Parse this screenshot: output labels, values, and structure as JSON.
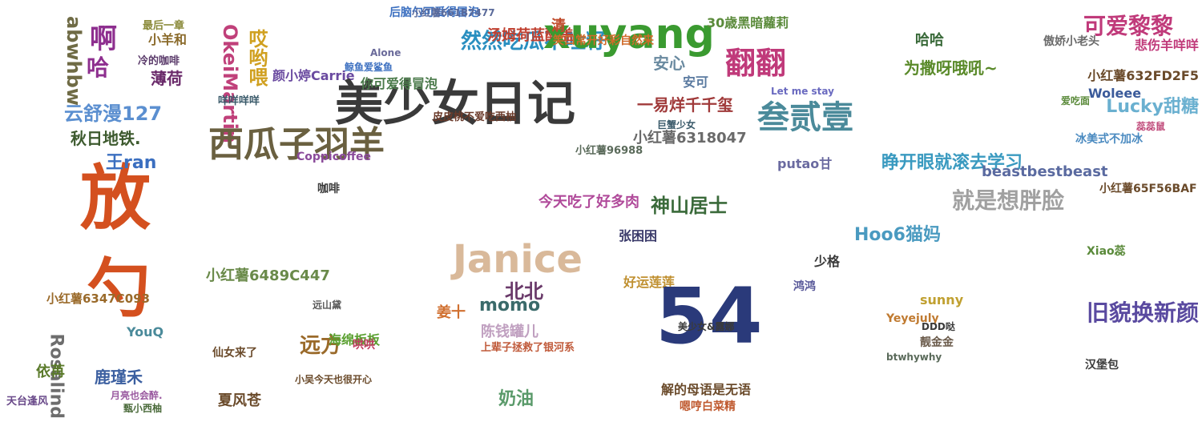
{
  "words": [
    {
      "text": "放",
      "color": "#d4501f"
    },
    {
      "text": "勺",
      "color": "#d4501f"
    },
    {
      "text": "abwhbw",
      "color": "#6f6b45"
    },
    {
      "text": "啊",
      "color": "#8e2f8f"
    },
    {
      "text": "哈",
      "color": "#8e2f8f"
    },
    {
      "text": "云舒漫127",
      "color": "#5b8fd0"
    },
    {
      "text": "秋日地铁.",
      "color": "#3d5a2e"
    },
    {
      "text": "王ran",
      "color": "#3b6fc0"
    },
    {
      "text": "Rosalind",
      "color": "#6d6d6d"
    },
    {
      "text": "鹿瑾禾",
      "color": "#3b5fa0"
    },
    {
      "text": "YouQ",
      "color": "#4a8a9a"
    },
    {
      "text": "小红薯6347C093",
      "color": "#9a6a2a"
    },
    {
      "text": "依苒",
      "color": "#5a7a2a"
    },
    {
      "text": "天台逢风",
      "color": "#6a4a8a"
    },
    {
      "text": "小羊和",
      "color": "#8a6a2a"
    },
    {
      "text": "最后一章",
      "color": "#8a8a3a"
    },
    {
      "text": "冷的咖啡",
      "color": "#5a3a6a"
    },
    {
      "text": "薄荷",
      "color": "#6a2a6a"
    },
    {
      "text": "月亮也会醉.",
      "color": "#9a5aa0"
    },
    {
      "text": "甄小西柚",
      "color": "#4a6a3a"
    },
    {
      "text": "OkeiMartin",
      "color": "#c0407a"
    },
    {
      "text": "哎哟喂",
      "color": "#d0a020"
    },
    {
      "text": "西瓜子羽羊",
      "color": "#6a6040"
    },
    {
      "text": "颜小婷Carrie",
      "color": "#6a4aa0"
    },
    {
      "text": "咩咩咩咩",
      "color": "#3a5a6a"
    },
    {
      "text": "小红薯6489C447",
      "color": "#6a8a4a"
    },
    {
      "text": "夏风苍",
      "color": "#6a4a2a"
    },
    {
      "text": "仙女来了",
      "color": "#6a4a2a"
    },
    {
      "text": "美少女日记",
      "color": "#3a3a3a"
    },
    {
      "text": "鲸鱼爱鲨鱼",
      "color": "#3b6fc0"
    },
    {
      "text": "你可爱得冒泡",
      "color": "#4a7a4a"
    },
    {
      "text": "Coppicoffee",
      "color": "#8a4a9a"
    },
    {
      "text": "咖啡",
      "color": "#3a3a3a"
    },
    {
      "text": "远方",
      "color": "#9a6a2a"
    },
    {
      "text": "海绵板板",
      "color": "#5aa030"
    },
    {
      "text": "哄哄",
      "color": "#c03a60"
    },
    {
      "text": "远山黛",
      "color": "#5a5a5a"
    },
    {
      "text": "小吴今天也很开心",
      "color": "#6a4a2a"
    },
    {
      "text": "后脑勺可爱得冒泡",
      "color": "#3b6fc0"
    },
    {
      "text": "Alone",
      "color": "#6a6a9a"
    },
    {
      "text": "小红薯661B7477",
      "color": "#5a6a9a"
    },
    {
      "text": "然然吃瓜不吐籽",
      "color": "#2a8fc0"
    },
    {
      "text": "汤姆荷蓝酷盖",
      "color": "#c04030"
    },
    {
      "text": "皮皮桃不爱吃西柚",
      "color": "#6a3a2a"
    },
    {
      "text": "Janice",
      "color": "#d9b99a"
    },
    {
      "text": "北北",
      "color": "#6a3a6a"
    },
    {
      "text": "陈钱罐儿",
      "color": "#c0a0c0"
    },
    {
      "text": "奶油",
      "color": "#5a9a6a"
    },
    {
      "text": "上辈子拯救了银河系",
      "color": "#c05a3a"
    },
    {
      "text": "姜十",
      "color": "#d07030"
    },
    {
      "text": "xuyang",
      "color": "#3a9a30"
    },
    {
      "text": "笑口常开好彩自然来",
      "color": "#d06a2a"
    },
    {
      "text": "今天吃了好多肉",
      "color": "#b04a9a"
    },
    {
      "text": "momo",
      "color": "#3a6a6a"
    },
    {
      "text": "清",
      "color": "#c04a2a"
    },
    {
      "text": "小红薯96988",
      "color": "#5a6a5a"
    },
    {
      "text": "翻翻",
      "color": "#c03a7a"
    },
    {
      "text": "叁贰壹",
      "color": "#4a8a9a"
    },
    {
      "text": "一易烊千千玺",
      "color": "#a03a3a"
    },
    {
      "text": "安心",
      "color": "#6a8aa0"
    },
    {
      "text": "安可",
      "color": "#5a7aa0"
    },
    {
      "text": "30歳黑暗蘿莉",
      "color": "#5a8a3a"
    },
    {
      "text": "小红薯6318047",
      "color": "#6a6a6a"
    },
    {
      "text": "神山居士",
      "color": "#3a6a3a"
    },
    {
      "text": "张困困",
      "color": "#3a3a6a"
    },
    {
      "text": "好运莲莲",
      "color": "#c09030"
    },
    {
      "text": "54",
      "color": "#2a3a7a"
    },
    {
      "text": "解的母语是无语",
      "color": "#6a4a2a"
    },
    {
      "text": "嗯哼白菜精",
      "color": "#c05a30"
    },
    {
      "text": "美少女&露娜",
      "color": "#3a3a3a"
    },
    {
      "text": "Let me stay",
      "color": "#6a6ac0"
    },
    {
      "text": "巨蟹少女",
      "color": "#3a5a6a"
    },
    {
      "text": "putao甘",
      "color": "#6a6aa0"
    },
    {
      "text": "少格",
      "color": "#3a3a3a"
    },
    {
      "text": "鸿鸿",
      "color": "#5a5a9a"
    },
    {
      "text": "为撒呀哦吼~",
      "color": "#5a8a2a"
    },
    {
      "text": "哈哈",
      "color": "#3a6a3a"
    },
    {
      "text": "睁开眼就滚去学习",
      "color": "#3a9ac0"
    },
    {
      "text": "Hoo6猫妈",
      "color": "#4a9ac0"
    },
    {
      "text": "就是想胖脸",
      "color": "#a0a0a0"
    },
    {
      "text": "beastbestbeast",
      "color": "#5a6aa0"
    },
    {
      "text": "sunny",
      "color": "#c0a030"
    },
    {
      "text": "Yeyejuly",
      "color": "#c07a30"
    },
    {
      "text": "靓金金",
      "color": "#6a5a4a"
    },
    {
      "text": "DDD哒",
      "color": "#3a3a3a"
    },
    {
      "text": "btwhywhy",
      "color": "#5a6a5a"
    },
    {
      "text": "可爱黎黎",
      "color": "#c03a7a"
    },
    {
      "text": "Lucky甜糖",
      "color": "#6ab0d0"
    },
    {
      "text": "小红薯632FD2F5",
      "color": "#6a4a2a"
    },
    {
      "text": "小红薯65F56BAF",
      "color": "#6a4a2a"
    },
    {
      "text": "旧貌换新颜",
      "color": "#5a4aa0"
    },
    {
      "text": "Woleee",
      "color": "#3a5a9a"
    },
    {
      "text": "冰美式不加冰",
      "color": "#4a8ac0"
    },
    {
      "text": "悲伤羊咩咩",
      "color": "#c03a7a"
    },
    {
      "text": "傲娇小老头",
      "color": "#6a6a6a"
    },
    {
      "text": "Xiao蕊",
      "color": "#5a8a3a"
    },
    {
      "text": "汉堡包",
      "color": "#3a3a3a"
    },
    {
      "text": "蕊蕊鼠",
      "color": "#c04a7a"
    },
    {
      "text": "爱吃面",
      "color": "#5a8a3a"
    }
  ]
}
